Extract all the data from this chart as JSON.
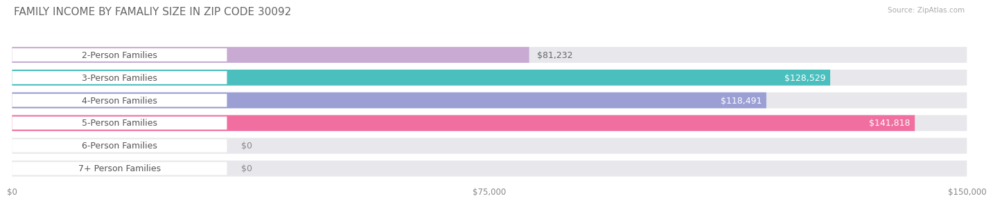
{
  "title": "FAMILY INCOME BY FAMALIY SIZE IN ZIP CODE 30092",
  "source": "Source: ZipAtlas.com",
  "categories": [
    "2-Person Families",
    "3-Person Families",
    "4-Person Families",
    "5-Person Families",
    "6-Person Families",
    "7+ Person Families"
  ],
  "values": [
    81232,
    128529,
    118491,
    141818,
    0,
    0
  ],
  "bar_colors": [
    "#c8aad3",
    "#4bbfbe",
    "#9b9fd4",
    "#f06fa0",
    "#f5c9a0",
    "#f0a8a8"
  ],
  "value_labels": [
    "$81,232",
    "$128,529",
    "$118,491",
    "$141,818",
    "$0",
    "$0"
  ],
  "value_inside": [
    false,
    true,
    true,
    true,
    false,
    false
  ],
  "xlim": [
    0,
    150000
  ],
  "xticks": [
    0,
    75000,
    150000
  ],
  "xtick_labels": [
    "$0",
    "$75,000",
    "$150,000"
  ],
  "bg_color": "#ffffff",
  "bar_bg_color": "#e8e8ec",
  "title_fontsize": 11,
  "label_fontsize": 9,
  "value_fontsize": 9
}
